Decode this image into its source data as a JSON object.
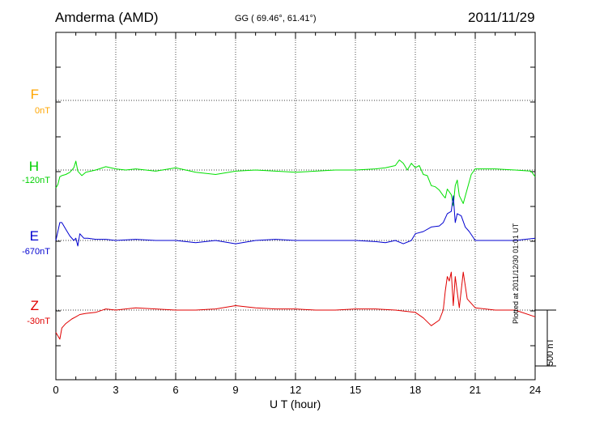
{
  "header": {
    "station": "Amderma (AMD)",
    "coords": "GG ( 69.46°,  61.41°)",
    "date": "2011/11/29"
  },
  "side_note": "Plotted at 2011/12/30 01:01  UT",
  "colors": {
    "F": "#ffa500",
    "H": "#00e000",
    "E": "#0000d0",
    "Z": "#e00000",
    "axis": "#000000"
  },
  "chart_data": {
    "type": "line",
    "title": "Amderma (AMD)",
    "xlabel": "U T (hour)",
    "ylabel": "",
    "xlim": [
      0,
      24
    ],
    "x_ticks": [
      "0",
      "3",
      "6",
      "9",
      "12",
      "15",
      "18",
      "21",
      "24"
    ],
    "grid": true,
    "scale_bar": "500 nT",
    "components": [
      {
        "name": "F",
        "baseline": "0nT"
      },
      {
        "name": "H",
        "baseline": "-120nT"
      },
      {
        "name": "E",
        "baseline": "-670nT"
      },
      {
        "name": "Z",
        "baseline": "-30nT"
      }
    ],
    "series": [
      {
        "name": "H",
        "x": [
          0,
          0.1,
          0.2,
          0.3,
          0.5,
          0.7,
          0.9,
          1.0,
          1.1,
          1.3,
          1.5,
          2,
          2.5,
          3,
          3.5,
          4,
          5,
          6,
          7,
          8,
          9,
          10,
          11,
          12,
          13,
          14,
          15,
          16,
          16.5,
          17,
          17.2,
          17.4,
          17.6,
          17.8,
          18,
          18.2,
          18.4,
          18.6,
          18.8,
          19,
          19.2,
          19.4,
          19.5,
          19.6,
          19.8,
          19.9,
          20.0,
          20.1,
          20.2,
          20.4,
          20.6,
          20.8,
          21,
          22,
          23,
          23.8,
          24
        ],
        "y": [
          -160,
          -130,
          -60,
          -50,
          -40,
          -20,
          20,
          80,
          -10,
          -50,
          -20,
          0,
          30,
          10,
          0,
          10,
          -10,
          20,
          -20,
          -40,
          -10,
          0,
          -10,
          -20,
          -10,
          0,
          0,
          10,
          20,
          40,
          90,
          60,
          0,
          60,
          20,
          40,
          -40,
          -50,
          -140,
          -150,
          -180,
          -230,
          -250,
          -170,
          -220,
          -320,
          -140,
          -90,
          -230,
          -300,
          -170,
          -40,
          10,
          10,
          0,
          -10,
          -60
        ]
      },
      {
        "name": "E",
        "x": [
          0,
          0.2,
          0.3,
          0.5,
          0.7,
          0.9,
          1.0,
          1.1,
          1.2,
          1.4,
          1.6,
          2,
          2.5,
          3,
          4,
          5,
          6,
          7,
          8,
          9,
          10,
          11,
          12,
          13,
          14,
          15,
          16,
          16.5,
          17,
          17.4,
          17.8,
          18,
          18.4,
          18.8,
          19.2,
          19.4,
          19.6,
          19.8,
          19.9,
          20.0,
          20.1,
          20.3,
          20.5,
          20.7,
          21,
          22,
          23,
          24
        ],
        "y": [
          0,
          160,
          160,
          100,
          40,
          0,
          20,
          -50,
          60,
          20,
          20,
          10,
          10,
          0,
          10,
          0,
          0,
          -20,
          0,
          -30,
          0,
          10,
          0,
          0,
          0,
          0,
          -10,
          -20,
          0,
          -30,
          0,
          60,
          80,
          120,
          130,
          160,
          240,
          260,
          400,
          160,
          240,
          220,
          120,
          80,
          0,
          0,
          0,
          20
        ]
      },
      {
        "name": "Z",
        "x": [
          0,
          0.2,
          0.3,
          0.5,
          0.8,
          1.0,
          1.2,
          1.5,
          2,
          2.5,
          3,
          4,
          5,
          6,
          7,
          8,
          9,
          10,
          11,
          12,
          13,
          14,
          15,
          16,
          17,
          18,
          18.4,
          18.8,
          19.2,
          19.4,
          19.5,
          19.6,
          19.7,
          19.8,
          19.9,
          20,
          20.2,
          20.4,
          20.6,
          21,
          22,
          23,
          24
        ],
        "y": [
          -200,
          -260,
          -160,
          -120,
          -80,
          -60,
          -40,
          -30,
          -20,
          10,
          0,
          20,
          10,
          0,
          0,
          10,
          40,
          20,
          10,
          10,
          0,
          0,
          10,
          10,
          0,
          -20,
          -70,
          -140,
          -90,
          0,
          170,
          300,
          260,
          340,
          40,
          300,
          20,
          340,
          100,
          20,
          0,
          0,
          -60
        ]
      }
    ]
  }
}
